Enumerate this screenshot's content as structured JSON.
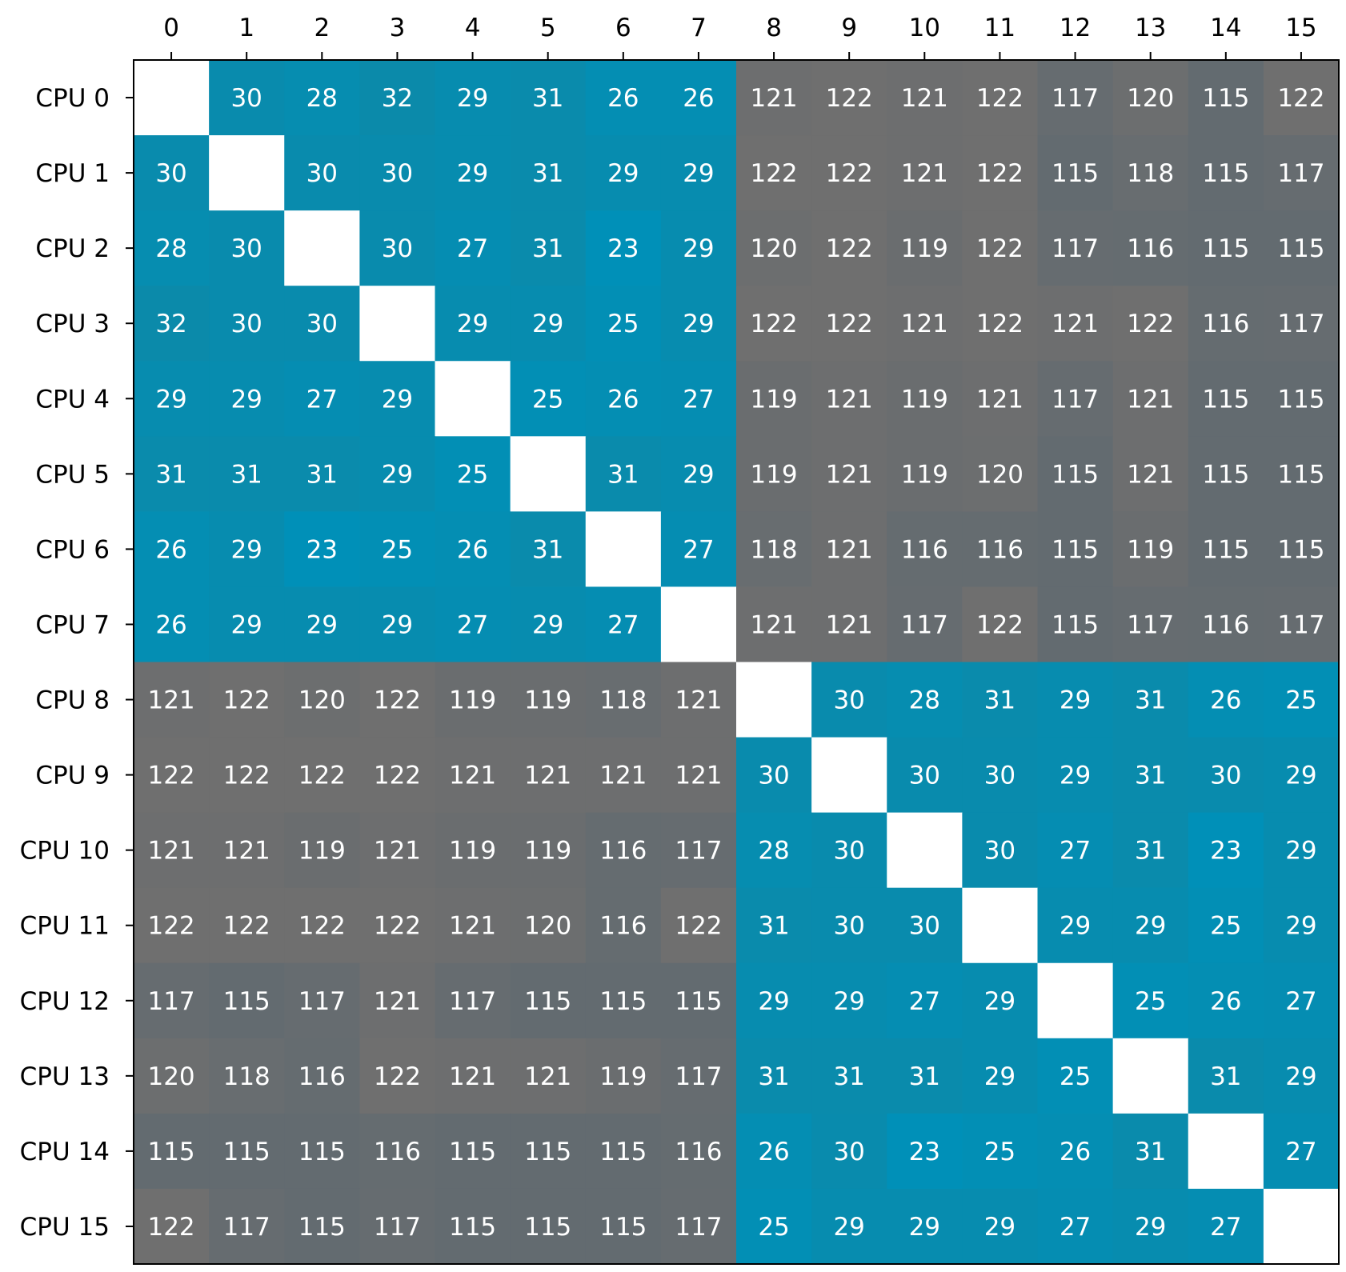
{
  "chart_data": {
    "type": "heatmap",
    "title": "",
    "xlabel": "",
    "ylabel": "",
    "x_tick_labels": [
      "0",
      "1",
      "2",
      "3",
      "4",
      "5",
      "6",
      "7",
      "8",
      "9",
      "10",
      "11",
      "12",
      "13",
      "14",
      "15"
    ],
    "y_tick_labels": [
      "CPU 0",
      "CPU 1",
      "CPU 2",
      "CPU 3",
      "CPU 4",
      "CPU 5",
      "CPU 6",
      "CPU 7",
      "CPU 8",
      "CPU 9",
      "CPU 10",
      "CPU 11",
      "CPU 12",
      "CPU 13",
      "CPU 14",
      "CPU 15"
    ],
    "x_axis_position": "top",
    "colors": {
      "low": "#0090b8",
      "low_high": "#0b8aaa",
      "high_low": "#636b70",
      "high": "#6f6f6f",
      "diagonal": "#ffffff",
      "text": "#ffffff"
    },
    "values": [
      [
        null,
        30,
        28,
        32,
        29,
        31,
        26,
        26,
        121,
        122,
        121,
        122,
        117,
        120,
        115,
        122
      ],
      [
        30,
        null,
        30,
        30,
        29,
        31,
        29,
        29,
        122,
        122,
        121,
        122,
        115,
        118,
        115,
        117
      ],
      [
        28,
        30,
        null,
        30,
        27,
        31,
        23,
        29,
        120,
        122,
        119,
        122,
        117,
        116,
        115,
        115
      ],
      [
        32,
        30,
        30,
        null,
        29,
        29,
        25,
        29,
        122,
        122,
        121,
        122,
        121,
        122,
        116,
        117
      ],
      [
        29,
        29,
        27,
        29,
        null,
        25,
        26,
        27,
        119,
        121,
        119,
        121,
        117,
        121,
        115,
        115
      ],
      [
        31,
        31,
        31,
        29,
        25,
        null,
        31,
        29,
        119,
        121,
        119,
        120,
        115,
        121,
        115,
        115
      ],
      [
        26,
        29,
        23,
        25,
        26,
        31,
        null,
        27,
        118,
        121,
        116,
        116,
        115,
        119,
        115,
        115
      ],
      [
        26,
        29,
        29,
        29,
        27,
        29,
        27,
        null,
        121,
        121,
        117,
        122,
        115,
        117,
        116,
        117
      ],
      [
        121,
        122,
        120,
        122,
        119,
        119,
        118,
        121,
        null,
        30,
        28,
        31,
        29,
        31,
        26,
        25
      ],
      [
        122,
        122,
        122,
        122,
        121,
        121,
        121,
        121,
        30,
        null,
        30,
        30,
        29,
        31,
        30,
        29
      ],
      [
        121,
        121,
        119,
        121,
        119,
        119,
        116,
        117,
        28,
        30,
        null,
        30,
        27,
        31,
        23,
        29
      ],
      [
        122,
        122,
        122,
        122,
        121,
        120,
        116,
        122,
        31,
        30,
        30,
        null,
        29,
        29,
        25,
        29
      ],
      [
        117,
        115,
        117,
        121,
        117,
        115,
        115,
        115,
        29,
        29,
        27,
        29,
        null,
        25,
        26,
        27
      ],
      [
        120,
        118,
        116,
        122,
        121,
        121,
        119,
        117,
        31,
        31,
        31,
        29,
        25,
        null,
        31,
        29
      ],
      [
        115,
        115,
        115,
        116,
        115,
        115,
        115,
        116,
        26,
        30,
        23,
        25,
        26,
        31,
        null,
        27
      ],
      [
        122,
        117,
        115,
        117,
        115,
        115,
        115,
        117,
        25,
        29,
        29,
        29,
        27,
        29,
        27,
        null
      ]
    ]
  }
}
